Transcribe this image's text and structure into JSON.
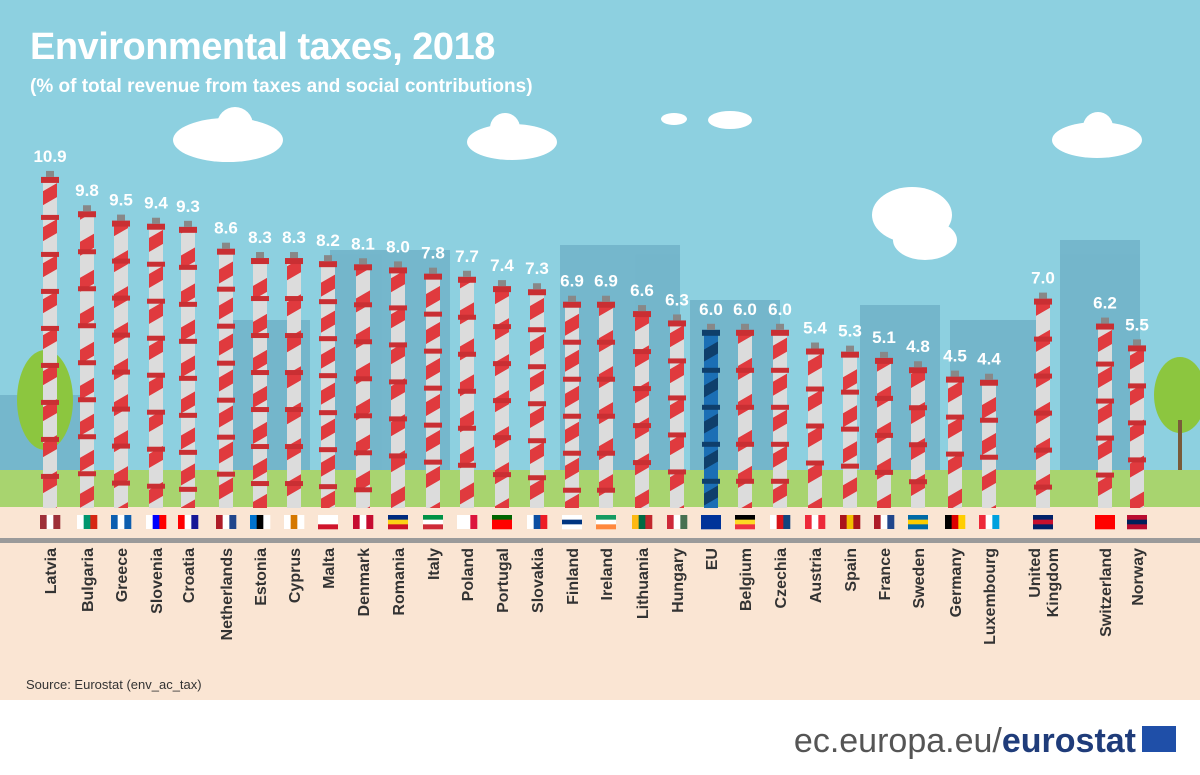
{
  "header": {
    "title": "Environmental taxes, 2018",
    "subtitle": "(% of total revenue from taxes and social contributions)"
  },
  "source": "Source: Eurostat (env_ac_tax)",
  "footer": {
    "domain": "ec.europa.eu/",
    "brand": "eurostat"
  },
  "colors": {
    "sky": "#8dd0e0",
    "ground": "#fae5d3",
    "chimney_stripe": "#e03a3e",
    "eu_chimney": "#1b6fb5",
    "label": "#ffffff"
  },
  "chart_data": {
    "type": "bar",
    "title": "Environmental taxes, 2018",
    "subtitle": "(% of total revenue from taxes and social contributions)",
    "categories": [
      "Latvia",
      "Bulgaria",
      "Greece",
      "Slovenia",
      "Croatia",
      "Netherlands",
      "Estonia",
      "Cyprus",
      "Malta",
      "Denmark",
      "Romania",
      "Italy",
      "Poland",
      "Portugal",
      "Slovakia",
      "Finland",
      "Ireland",
      "Lithuania",
      "Hungary",
      "EU",
      "Belgium",
      "Czechia",
      "Austria",
      "Spain",
      "France",
      "Sweden",
      "Germany",
      "Luxembourg",
      "United Kingdom",
      "Switzerland",
      "Norway"
    ],
    "values": [
      10.9,
      9.8,
      9.5,
      9.4,
      9.3,
      8.6,
      8.3,
      8.3,
      8.2,
      8.1,
      8.0,
      7.8,
      7.7,
      7.4,
      7.3,
      6.9,
      6.9,
      6.6,
      6.3,
      6.0,
      6.0,
      6.0,
      5.4,
      5.3,
      5.1,
      4.8,
      4.5,
      4.4,
      7.0,
      6.2,
      5.5
    ],
    "value_labels": [
      "10.9",
      "9.8",
      "9.5",
      "9.4",
      "9.3",
      "8.6",
      "8.3",
      "8.3",
      "8.2",
      "8.1",
      "8.0",
      "7.8",
      "7.7",
      "7.4",
      "7.3",
      "6.9",
      "6.9",
      "6.6",
      "6.3",
      "6.0",
      "6.0",
      "6.0",
      "5.4",
      "5.3",
      "5.1",
      "4.8",
      "4.5",
      "4.4",
      "7.0",
      "6.2",
      "5.5"
    ],
    "flags": [
      [
        "v",
        "#9e3039",
        "#ffffff",
        "#9e3039"
      ],
      [
        "v",
        "#ffffff",
        "#00966e",
        "#d62612"
      ],
      [
        "v",
        "#0d5eaf",
        "#ffffff",
        "#0d5eaf"
      ],
      [
        "v",
        "#ffffff",
        "#0000ff",
        "#ff0000"
      ],
      [
        "v",
        "#ff0000",
        "#ffffff",
        "#171796"
      ],
      [
        "v",
        "#ae1c28",
        "#ffffff",
        "#21468b"
      ],
      [
        "v",
        "#0072ce",
        "#000000",
        "#ffffff"
      ],
      [
        "v",
        "#ffffff",
        "#d57800",
        "#ffffff"
      ],
      [
        "h",
        "#ffffff",
        "#ffffff",
        "#cf142b"
      ],
      [
        "v",
        "#c60c30",
        "#ffffff",
        "#c60c30"
      ],
      [
        "h",
        "#002b7f",
        "#fcd116",
        "#ce1126"
      ],
      [
        "h",
        "#009246",
        "#ffffff",
        "#ce2b37"
      ],
      [
        "v",
        "#ffffff",
        "#ffffff",
        "#dc143c"
      ],
      [
        "h",
        "#006600",
        "#ff0000",
        "#ff0000"
      ],
      [
        "v",
        "#ffffff",
        "#0b4ea2",
        "#ee1c25"
      ],
      [
        "h",
        "#ffffff",
        "#003580",
        "#ffffff"
      ],
      [
        "h",
        "#169b62",
        "#ffffff",
        "#ff883e"
      ],
      [
        "v",
        "#fdb913",
        "#006a44",
        "#c1272d"
      ],
      [
        "v",
        "#ce2939",
        "#ffffff",
        "#477050"
      ],
      [
        "h",
        "#003399",
        "#003399",
        "#003399"
      ],
      [
        "h",
        "#000000",
        "#fdda24",
        "#ef3340"
      ],
      [
        "v",
        "#ffffff",
        "#d7141a",
        "#11457e"
      ],
      [
        "v",
        "#ed2939",
        "#ffffff",
        "#ed2939"
      ],
      [
        "v",
        "#aa151b",
        "#f1bf00",
        "#aa151b"
      ],
      [
        "v",
        "#ae1c28",
        "#ffffff",
        "#21468b"
      ],
      [
        "h",
        "#006aa7",
        "#fecc00",
        "#006aa7"
      ],
      [
        "v",
        "#000000",
        "#dd0000",
        "#ffce00"
      ],
      [
        "v",
        "#ed2939",
        "#ffffff",
        "#00a1de"
      ],
      [
        "h",
        "#012169",
        "#c8102e",
        "#012169"
      ],
      [
        "h",
        "#ff0000",
        "#ff0000",
        "#ff0000"
      ],
      [
        "h",
        "#ba0c2f",
        "#00205b",
        "#ba0c2f"
      ]
    ],
    "ylim": [
      0,
      11
    ],
    "grid": false,
    "legend": "none"
  }
}
